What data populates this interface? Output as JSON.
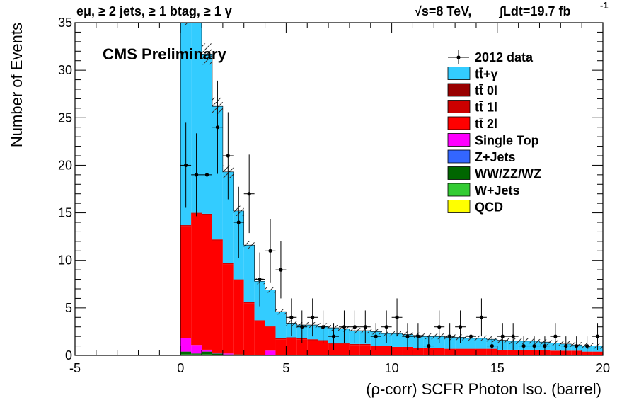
{
  "chart_data": {
    "type": "bar",
    "stacked": true,
    "header_left": "eμ, ≥ 2 jets, ≥ 1 btag, ≥ 1 γ",
    "header_right_energy": "√s=8 TeV,",
    "header_right_lumi": "∫Ldt=19.7 fb",
    "header_right_lumi_exp": "-1",
    "label": "CMS Preliminary",
    "xlabel": "(ρ-corr) SCFR Photon Iso. (barrel)",
    "ylabel": "Number of Events",
    "xlim": [
      -5,
      20
    ],
    "ylim": [
      0,
      35
    ],
    "x_ticks": [
      -5,
      0,
      5,
      10,
      15,
      20
    ],
    "y_ticks": [
      0,
      5,
      10,
      15,
      20,
      25,
      30,
      35
    ],
    "bin_width": 0.5,
    "bin_starts": [
      0,
      0.5,
      1,
      1.5,
      2,
      2.5,
      3,
      3.5,
      4,
      4.5,
      5,
      5.5,
      6,
      6.5,
      7,
      7.5,
      8,
      8.5,
      9,
      9.5,
      10,
      10.5,
      11,
      11.5,
      12,
      12.5,
      13,
      13.5,
      14,
      14.5,
      15,
      15.5,
      16,
      16.5,
      17,
      17.5,
      18,
      18.5,
      19,
      19.5
    ],
    "series": [
      {
        "name": "QCD",
        "color": "#ffff00",
        "values": [
          0,
          0,
          0,
          0,
          0,
          0,
          0,
          0,
          0,
          0,
          0,
          0,
          0,
          0,
          0,
          0,
          0,
          0,
          0,
          0,
          0,
          0,
          0,
          0,
          0,
          0,
          0,
          0,
          0,
          0,
          0,
          0,
          0,
          0,
          0,
          0,
          0,
          0,
          0,
          0
        ]
      },
      {
        "name": "W+Jets",
        "color": "#33cc33",
        "values": [
          0.1,
          0.1,
          0.1,
          0,
          0,
          0,
          0,
          0,
          0,
          0,
          0,
          0,
          0,
          0,
          0,
          0,
          0,
          0,
          0,
          0,
          0,
          0,
          0,
          0,
          0,
          0,
          0,
          0,
          0,
          0,
          0,
          0,
          0,
          0,
          0,
          0,
          0,
          0,
          0,
          0
        ]
      },
      {
        "name": "WW/ZZ/WZ",
        "color": "#006600",
        "values": [
          0.3,
          0.1,
          0.3,
          0.2,
          0.1,
          0.1,
          0,
          0,
          0,
          0,
          0,
          0,
          0,
          0,
          0,
          0,
          0,
          0,
          0,
          0,
          0,
          0,
          0,
          0,
          0,
          0,
          0,
          0,
          0,
          0,
          0,
          0,
          0,
          0,
          0,
          0,
          0,
          0,
          0,
          0
        ]
      },
      {
        "name": "Z+Jets",
        "color": "#3366ff",
        "values": [
          0,
          0,
          0,
          0,
          0,
          0,
          0,
          0,
          0,
          0,
          0,
          0,
          0,
          0,
          0,
          0,
          0,
          0,
          0,
          0,
          0,
          0,
          0,
          0,
          0,
          0,
          0,
          0,
          0,
          0,
          0,
          0,
          0,
          0,
          0,
          0,
          0,
          0,
          0,
          0
        ]
      },
      {
        "name": "Single Top",
        "color": "#ff00ff",
        "values": [
          1.4,
          0.9,
          0.2,
          0.1,
          0.1,
          0,
          0,
          0,
          0.5,
          0,
          0,
          0,
          0,
          0,
          0,
          0,
          0,
          0,
          0,
          0,
          0,
          0,
          0,
          0,
          0,
          0,
          0,
          0,
          0,
          0,
          0,
          0,
          0,
          0,
          0,
          0,
          0,
          0,
          0,
          0
        ]
      },
      {
        "name": "tt̄ 2l",
        "color": "#ff0000",
        "values": [
          11.8,
          13.8,
          14.2,
          11.8,
          9.4,
          7.8,
          5.5,
          3.6,
          2.5,
          1.7,
          1.8,
          1.7,
          1.6,
          1.5,
          1.2,
          1.2,
          1.1,
          1.1,
          1.0,
          1.0,
          0.9,
          0.9,
          0.8,
          0.8,
          0.8,
          0.7,
          0.7,
          0.7,
          0.7,
          0.7,
          0.6,
          0.6,
          0.6,
          0.6,
          0.6,
          0.5,
          0.5,
          0.5,
          0.4,
          0.4
        ]
      },
      {
        "name": "tt̄ 1l",
        "color": "#cc0000",
        "values": [
          0.1,
          0.1,
          0.1,
          0.1,
          0.1,
          0.1,
          0.1,
          0.1,
          0.1,
          0.1,
          0.1,
          0.1,
          0.1,
          0.1,
          0.1,
          0.1,
          0.1,
          0.1,
          0,
          0,
          0,
          0,
          0,
          0,
          0,
          0,
          0,
          0,
          0,
          0,
          0,
          0,
          0,
          0,
          0,
          0,
          0,
          0,
          0,
          0
        ]
      },
      {
        "name": "tt̄ 0l",
        "color": "#990000",
        "values": [
          0,
          0,
          0,
          0,
          0,
          0,
          0,
          0,
          0,
          0,
          0,
          0,
          0,
          0,
          0,
          0,
          0,
          0,
          0,
          0,
          0,
          0,
          0,
          0,
          0,
          0,
          0,
          0,
          0,
          0,
          0,
          0,
          0,
          0,
          0,
          0,
          0,
          0,
          0,
          0
        ]
      },
      {
        "name": "tt̄+γ",
        "color": "#33ccff",
        "values": [
          22.3,
          21.2,
          16.8,
          14.0,
          9.6,
          7.2,
          6.0,
          4.1,
          3.8,
          2.8,
          1.5,
          1.4,
          1.5,
          1.5,
          1.6,
          1.5,
          1.4,
          1.4,
          1.5,
          1.3,
          1.4,
          1.3,
          1.3,
          1.2,
          1.2,
          1.2,
          1.2,
          1.1,
          1.1,
          1.0,
          1.0,
          0.9,
          0.9,
          0.9,
          0.8,
          0.8,
          0.7,
          0.6,
          0.6,
          0.6
        ]
      }
    ],
    "totals": [
      36,
      36.2,
      31.7,
      26.2,
      19.3,
      15.2,
      11.6,
      7.8,
      6.9,
      4.6,
      3.4,
      3.2,
      3.2,
      3.1,
      2.9,
      2.8,
      2.6,
      2.6,
      2.5,
      2.3,
      2.3,
      2.2,
      2.1,
      2.0,
      2.0,
      1.9,
      1.9,
      1.8,
      1.8,
      1.7,
      1.6,
      1.5,
      1.5,
      1.5,
      1.4,
      1.3,
      1.2,
      1.1,
      1.0,
      1.0
    ],
    "data_series": {
      "name": "2012 data",
      "x": [
        0.25,
        0.75,
        1.25,
        1.75,
        2.25,
        2.75,
        3.25,
        3.75,
        4.25,
        4.75,
        5.25,
        5.75,
        6.25,
        6.75,
        7.25,
        7.75,
        8.25,
        8.75,
        9.25,
        9.75,
        10.25,
        10.75,
        11.25,
        11.75,
        12.25,
        12.75,
        13.25,
        13.75,
        14.25,
        14.75,
        15.25,
        15.75,
        16.25,
        16.75,
        17.25,
        17.75,
        18.25,
        18.75,
        19.25,
        19.75
      ],
      "y": [
        20,
        19,
        19,
        24,
        21,
        14,
        17,
        8,
        11,
        9,
        4,
        3,
        4,
        3,
        2,
        3,
        3,
        3,
        2,
        3,
        4,
        2,
        2,
        1,
        3,
        2,
        3,
        2,
        4,
        1,
        2,
        2,
        1,
        1,
        1,
        2,
        1,
        1,
        1,
        2
      ]
    },
    "legend_position": "top-right",
    "legend": [
      {
        "label": "2012 data",
        "style": "marker"
      },
      {
        "label": "tt̄+γ",
        "color": "#33ccff"
      },
      {
        "label": "tt̄ 0l",
        "color": "#990000"
      },
      {
        "label": "tt̄ 1l",
        "color": "#cc0000"
      },
      {
        "label": "tt̄ 2l",
        "color": "#ff0000"
      },
      {
        "label": "Single Top",
        "color": "#ff00ff"
      },
      {
        "label": "Z+Jets",
        "color": "#3366ff"
      },
      {
        "label": "WW/ZZ/WZ",
        "color": "#006600"
      },
      {
        "label": "W+Jets",
        "color": "#33cc33"
      },
      {
        "label": "QCD",
        "color": "#ffff00"
      }
    ],
    "grid": false
  }
}
